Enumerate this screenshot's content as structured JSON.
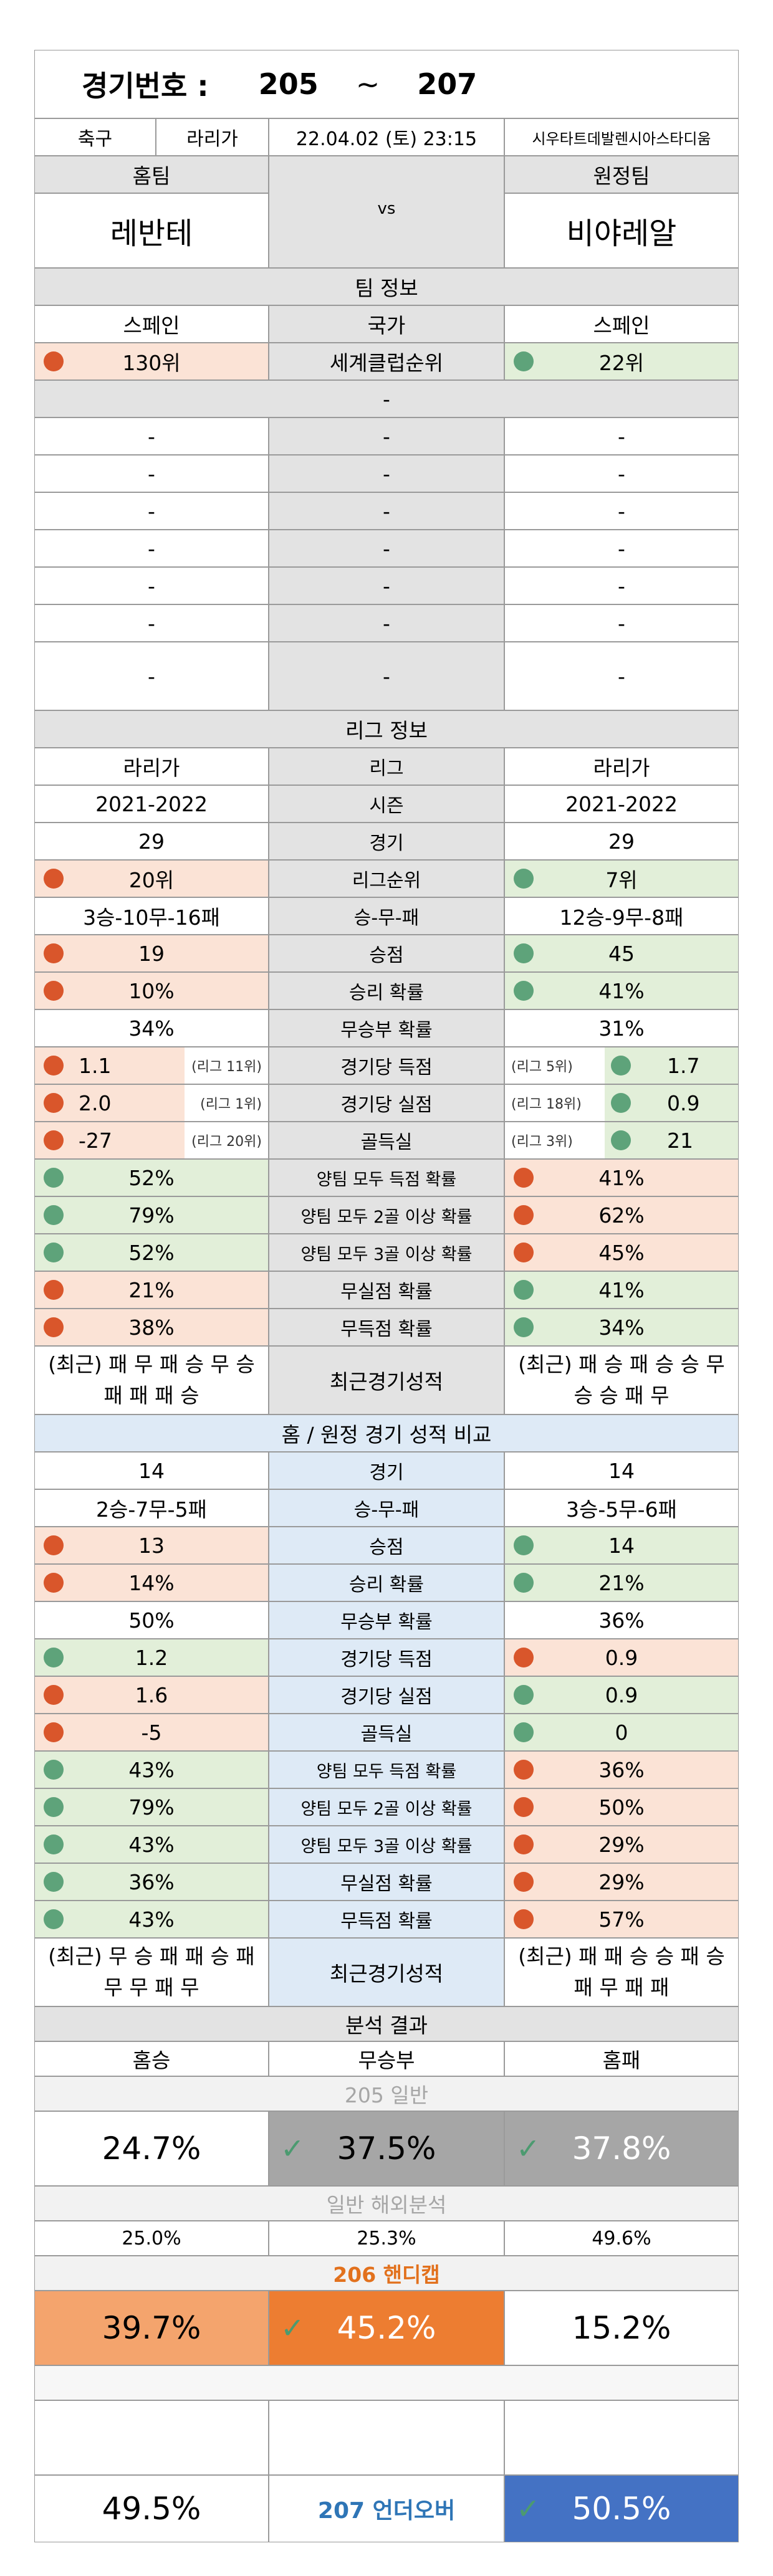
{
  "header": {
    "label": "경기번호 :",
    "from": "205",
    "tilde": "~",
    "to": "207"
  },
  "match": {
    "sport": "축구",
    "league": "라리가",
    "datetime": "22.04.02 (토) 23:15",
    "stadium": "시우타트데발렌시아스타디움"
  },
  "teams": {
    "home_label": "홈팀",
    "away_label": "원정팀",
    "home": "레반테",
    "vs": "vs",
    "away": "비야레알"
  },
  "team_info": {
    "title": "팀 정보",
    "country": {
      "home": "스페인",
      "label": "국가",
      "away": "스페인"
    },
    "club_rank": {
      "home": "130위",
      "label": "세계클럽순위",
      "away": "22위",
      "home_color": "red",
      "away_color": "green"
    },
    "dash": "-"
  },
  "league_info": {
    "title": "리그 정보",
    "rows": [
      {
        "home": "라리가",
        "label": "리그",
        "away": "라리가"
      },
      {
        "home": "2021-2022",
        "label": "시즌",
        "away": "2021-2022"
      },
      {
        "home": "29",
        "label": "경기",
        "away": "29"
      },
      {
        "home": "20위",
        "label": "리그순위",
        "away": "7위",
        "hdot": "r",
        "adot": "g",
        "hbg": "pink",
        "abg": "green"
      },
      {
        "home": "3승-10무-16패",
        "label": "승-무-패",
        "away": "12승-9무-8패"
      },
      {
        "home": "19",
        "label": "승점",
        "away": "45",
        "hdot": "r",
        "adot": "g",
        "hbg": "pink",
        "abg": "green"
      },
      {
        "home": "10%",
        "label": "승리 확률",
        "away": "41%",
        "hdot": "r",
        "adot": "g",
        "hbg": "pink",
        "abg": "green"
      },
      {
        "home": "34%",
        "label": "무승부 확률",
        "away": "31%"
      },
      {
        "home": "1.1",
        "hnote": "(리그 11위)",
        "label": "경기당 득점",
        "away": "1.7",
        "anote": "(리그 5위)",
        "hdot": "r",
        "adot": "g",
        "hbg": "pink",
        "abg": "green",
        "split": true
      },
      {
        "home": "2.0",
        "hnote": "(리그 1위)",
        "label": "경기당 실점",
        "away": "0.9",
        "anote": "(리그 18위)",
        "hdot": "r",
        "adot": "g",
        "hbg": "pink",
        "abg": "green",
        "split": true
      },
      {
        "home": "-27",
        "hnote": "(리그 20위)",
        "label": "골득실",
        "away": "21",
        "anote": "(리그 3위)",
        "hdot": "r",
        "adot": "g",
        "hbg": "pink",
        "abg": "green",
        "split": true
      },
      {
        "home": "52%",
        "label": "양팀 모두 득점 확률",
        "away": "41%",
        "hdot": "g",
        "adot": "r",
        "hbg": "green",
        "abg": "pink"
      },
      {
        "home": "79%",
        "label": "양팀 모두 2골 이상 확률",
        "away": "62%",
        "hdot": "g",
        "adot": "r",
        "hbg": "green",
        "abg": "pink"
      },
      {
        "home": "52%",
        "label": "양팀 모두 3골 이상 확률",
        "away": "45%",
        "hdot": "g",
        "adot": "r",
        "hbg": "green",
        "abg": "pink"
      },
      {
        "home": "21%",
        "label": "무실점 확률",
        "away": "41%",
        "hdot": "r",
        "adot": "g",
        "hbg": "pink",
        "abg": "green"
      },
      {
        "home": "38%",
        "label": "무득점 확률",
        "away": "34%",
        "hdot": "r",
        "adot": "g",
        "hbg": "pink",
        "abg": "green"
      }
    ],
    "recent": {
      "home": "(최근) 패 무 패 승 무 승 패 패 패 승",
      "label": "최근경기성적",
      "away": "(최근) 패 승 패 승 승 무 승 승 패 무"
    }
  },
  "home_away": {
    "title": "홈 / 원정 경기 성적 비교",
    "rows": [
      {
        "home": "14",
        "label": "경기",
        "away": "14"
      },
      {
        "home": "2승-7무-5패",
        "label": "승-무-패",
        "away": "3승-5무-6패"
      },
      {
        "home": "13",
        "label": "승점",
        "away": "14",
        "hdot": "r",
        "adot": "g",
        "hbg": "pink",
        "abg": "green"
      },
      {
        "home": "14%",
        "label": "승리 확률",
        "away": "21%",
        "hdot": "r",
        "adot": "g",
        "hbg": "pink",
        "abg": "green"
      },
      {
        "home": "50%",
        "label": "무승부 확률",
        "away": "36%"
      },
      {
        "home": "1.2",
        "label": "경기당 득점",
        "away": "0.9",
        "hdot": "g",
        "adot": "r",
        "hbg": "green",
        "abg": "pink"
      },
      {
        "home": "1.6",
        "label": "경기당 실점",
        "away": "0.9",
        "hdot": "r",
        "adot": "g",
        "hbg": "pink",
        "abg": "green"
      },
      {
        "home": "-5",
        "label": "골득실",
        "away": "0",
        "hdot": "r",
        "adot": "g",
        "hbg": "pink",
        "abg": "green"
      },
      {
        "home": "43%",
        "label": "양팀 모두 득점 확률",
        "away": "36%",
        "hdot": "g",
        "adot": "r",
        "hbg": "green",
        "abg": "pink"
      },
      {
        "home": "79%",
        "label": "양팀 모두 2골 이상 확률",
        "away": "50%",
        "hdot": "g",
        "adot": "r",
        "hbg": "green",
        "abg": "pink"
      },
      {
        "home": "43%",
        "label": "양팀 모두 3골 이상 확률",
        "away": "29%",
        "hdot": "g",
        "adot": "r",
        "hbg": "green",
        "abg": "pink"
      },
      {
        "home": "36%",
        "label": "무실점 확률",
        "away": "29%",
        "hdot": "g",
        "adot": "r",
        "hbg": "green",
        "abg": "pink"
      },
      {
        "home": "43%",
        "label": "무득점 확률",
        "away": "57%",
        "hdot": "g",
        "adot": "r",
        "hbg": "green",
        "abg": "pink"
      }
    ],
    "recent": {
      "home": "(최근) 무 승 패 패 승 패 무 무 패 무",
      "label": "최근경기성적",
      "away": "(최근) 패 패 승 승 패 승 패 무 패 패"
    }
  },
  "analysis": {
    "title": "분석 결과",
    "headers": {
      "home": "홈승",
      "draw": "무승부",
      "away": "홈패"
    },
    "general_title": "205 일반",
    "general": {
      "home": "24.7%",
      "draw": "37.5%",
      "away": "37.8%"
    },
    "overseas_title": "일반 해외분석",
    "overseas": {
      "home": "25.0%",
      "draw": "25.3%",
      "away": "49.6%"
    },
    "handicap_title": "206 핸디캡",
    "handicap": {
      "home": "39.7%",
      "draw": "45.2%",
      "away": "15.2%"
    },
    "underover_label": "207 언더오버",
    "underover": {
      "under": "49.5%",
      "over": "50.5%"
    },
    "check": "✓"
  },
  "colors": {
    "red_dot": "#d9562b",
    "green_dot": "#5ea37a",
    "pink": "#fbe3d6",
    "green": "#e2efd9",
    "blue": "#deeaf6",
    "gray": "#e3e3e3",
    "orange_light": "#f4a46d",
    "orange": "#ed7d31",
    "handicap_title": "#e2711d",
    "uo_label": "#2e75b6",
    "uo_box": "#4472c4"
  }
}
